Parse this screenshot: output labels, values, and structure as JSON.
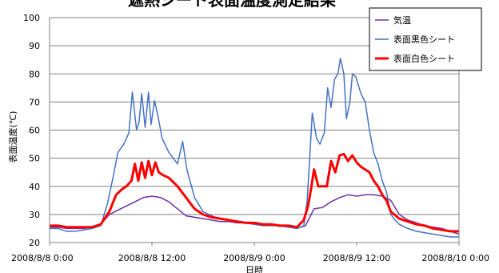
{
  "chart_data": {
    "type": "line",
    "title": "遮熱シート表面温度測定結果",
    "xlabel": "日時",
    "ylabel": "表面温度(℃)",
    "ylim": [
      20,
      100
    ],
    "yticks": [
      20,
      30,
      40,
      50,
      60,
      70,
      80,
      90,
      100
    ],
    "xlim": [
      0,
      48
    ],
    "xticks": [
      {
        "value": 0,
        "label": "2008/8/8 0:00"
      },
      {
        "value": 12,
        "label": "2008/8/8 12:00"
      },
      {
        "value": 24,
        "label": "2008/8/9 0:00"
      },
      {
        "value": 36,
        "label": "2008/8/9 12:00"
      },
      {
        "value": 48,
        "label": "2008/8/10 0:00"
      }
    ],
    "grid": true,
    "legend_position": "top-right",
    "series": [
      {
        "name": "気温",
        "color": "#7030a0",
        "width": 1.5,
        "x": [
          0,
          1,
          2,
          3,
          4,
          5,
          6,
          7,
          8,
          9,
          10,
          11,
          12,
          13,
          14,
          15,
          16,
          17,
          18,
          19,
          20,
          21,
          22,
          23,
          24,
          25,
          26,
          27,
          28,
          29,
          30,
          31,
          32,
          33,
          34,
          35,
          36,
          37,
          38,
          39,
          40,
          41,
          42,
          43,
          44,
          45,
          46,
          47,
          48
        ],
        "values": [
          25.5,
          25.5,
          25,
          25,
          25,
          25.5,
          26.5,
          30,
          31.5,
          33,
          34.5,
          36,
          36.5,
          36,
          34.5,
          32,
          29.5,
          29,
          28.5,
          28,
          27.5,
          27.5,
          27,
          27,
          26.5,
          26.5,
          26,
          26,
          25.5,
          25,
          26,
          32,
          32.5,
          34.5,
          36,
          37,
          36.5,
          37,
          37,
          36.5,
          35,
          30,
          28,
          27,
          26,
          25.5,
          25,
          24,
          23
        ]
      },
      {
        "name": "表面黒色シート",
        "color": "#4472c4",
        "width": 1.5,
        "x": [
          0,
          1,
          2,
          3,
          4,
          5,
          6,
          6.8,
          7.5,
          8,
          8.7,
          9.3,
          9.7,
          10.2,
          10.5,
          10.8,
          11.2,
          11.6,
          11.9,
          12.3,
          12.7,
          13.2,
          14,
          15,
          15.6,
          16.1,
          17,
          18,
          19,
          20,
          21,
          22,
          23,
          24,
          25,
          26,
          27,
          28,
          29,
          29.8,
          30.2,
          30.5,
          30.8,
          31.3,
          31.7,
          32.2,
          32.6,
          33,
          33.4,
          33.8,
          34.1,
          34.5,
          34.8,
          35.2,
          35.5,
          35.9,
          36.2,
          36.5,
          37,
          37.5,
          38,
          38.5,
          39,
          39.5,
          40,
          40.5,
          41,
          42,
          43,
          44,
          45,
          46,
          47,
          48
        ],
        "values": [
          25,
          25,
          24,
          24,
          24.5,
          25,
          26,
          34,
          44,
          52,
          55,
          59,
          73.5,
          60,
          63,
          73,
          61,
          73.5,
          62,
          70.5,
          65,
          57,
          52,
          48,
          56,
          46,
          36,
          31,
          29.5,
          28.5,
          28,
          27.5,
          27,
          26.5,
          26,
          26,
          26,
          25.5,
          25,
          26,
          35,
          50,
          66,
          57,
          55,
          59,
          75,
          68,
          78,
          80,
          85.5,
          80,
          64,
          70,
          80,
          79,
          76,
          73,
          70,
          60,
          52,
          48,
          42,
          38,
          30,
          28,
          26.5,
          25,
          24,
          23.5,
          23,
          22.5,
          22,
          22
        ]
      },
      {
        "name": "表面白色シート",
        "color": "#ff0000",
        "width": 3,
        "x": [
          0,
          1,
          2,
          3,
          4,
          5,
          6,
          7,
          7.8,
          8.5,
          9,
          9.6,
          10,
          10.4,
          10.8,
          11.2,
          11.6,
          12,
          12.4,
          12.8,
          13.3,
          14,
          15,
          16,
          17,
          18,
          19,
          20,
          21,
          22,
          23,
          24,
          25,
          26,
          27,
          28,
          29,
          29.8,
          30.3,
          30.7,
          31,
          31.5,
          32,
          32.5,
          33,
          33.5,
          34,
          34.5,
          35,
          35.5,
          36,
          36.5,
          37,
          37.5,
          38,
          38.5,
          39,
          39.5,
          40,
          41,
          42,
          43,
          44,
          45,
          46,
          47,
          48
        ],
        "values": [
          26,
          26,
          25.5,
          25.5,
          25.5,
          25.5,
          26.5,
          31,
          37,
          39,
          40,
          42,
          48,
          42,
          48.5,
          43,
          49,
          44,
          48.5,
          45,
          44,
          43,
          40,
          36,
          32,
          30,
          29,
          28.5,
          28,
          27.5,
          27,
          27,
          26.5,
          26.5,
          26,
          26,
          25.5,
          28,
          33,
          40,
          46,
          40,
          40,
          40,
          49,
          45,
          51,
          51.5,
          49,
          51,
          48.5,
          47,
          46,
          45,
          42,
          40,
          37,
          35,
          31,
          28.5,
          27.5,
          26.5,
          26,
          25,
          24.5,
          24,
          24
        ]
      }
    ]
  }
}
